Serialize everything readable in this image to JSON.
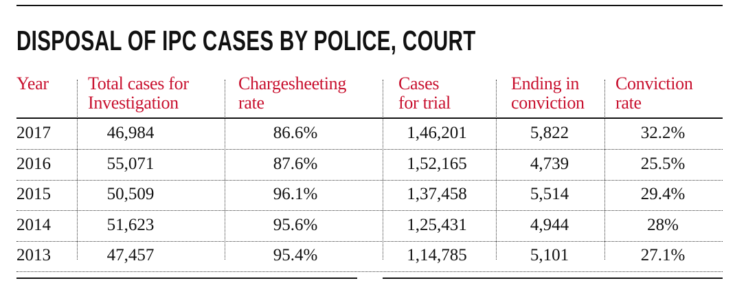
{
  "title": "DISPOSAL OF IPC CASES BY POLICE, COURT",
  "chart_data": {
    "type": "table",
    "columns": [
      "Year",
      "Total cases for\nInvestigation",
      "Chargesheeting\nrate",
      "Cases\nfor trial",
      "Ending in\nconviction",
      "Conviction\nrate"
    ],
    "rows": [
      [
        "2017",
        "46,984",
        "86.6%",
        "1,46,201",
        "5,822",
        "32.2%"
      ],
      [
        "2016",
        "55,071",
        "87.6%",
        "1,52,165",
        "4,739",
        "25.5%"
      ],
      [
        "2015",
        "50,509",
        "96.1%",
        "1,37,458",
        "5,514",
        "29.4%"
      ],
      [
        "2014",
        "51,623",
        "95.6%",
        "1,25,431",
        "4,944",
        "28%"
      ],
      [
        "2013",
        "47,457",
        "95.4%",
        "1,14,785",
        "5,101",
        "27.1%"
      ]
    ]
  },
  "colors": {
    "header": "#c8102e",
    "text": "#111111"
  }
}
